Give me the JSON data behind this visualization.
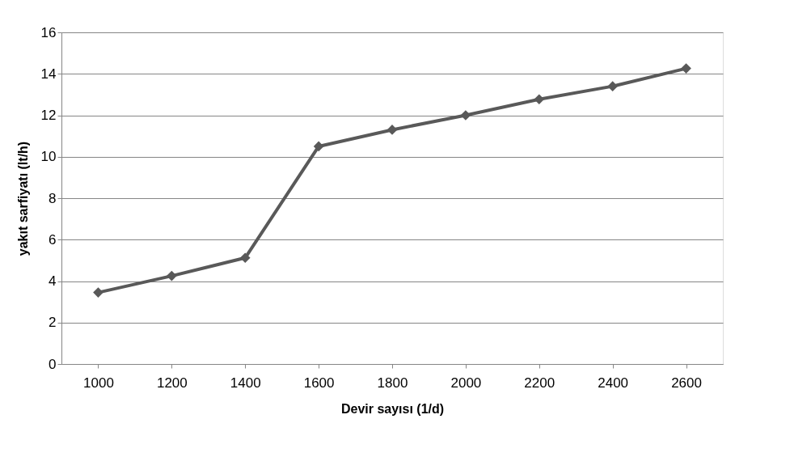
{
  "chart_data": {
    "type": "line",
    "xlabel": "Devir sayısı (1/d)",
    "ylabel": "yakıt sarfiyatı (lt/h)",
    "categories": [
      "1000",
      "1200",
      "1400",
      "1600",
      "1800",
      "2000",
      "2200",
      "2400",
      "2600"
    ],
    "series": [
      {
        "color": "#595959",
        "values": [
          3.45,
          4.25,
          5.12,
          10.5,
          11.3,
          12.0,
          12.77,
          13.4,
          14.26
        ]
      }
    ],
    "ylim": [
      0,
      16
    ],
    "yticks": [
      0,
      2,
      4,
      6,
      8,
      10,
      12,
      14,
      16
    ],
    "grid": "y",
    "marker": "diamond",
    "legend": false
  }
}
